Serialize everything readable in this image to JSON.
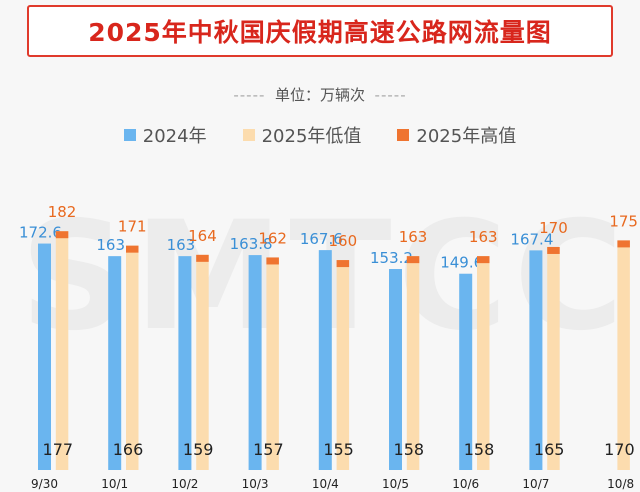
{
  "title": "2025年中秋国庆假期高速公路网流量图",
  "unit": {
    "dash_left": "-----",
    "text": "单位：万辆次",
    "dash_right": "-----"
  },
  "watermark": "SMTCC",
  "colors": {
    "title": "#d8261c",
    "series_2024": "#6ab5ef",
    "series_2025_low": "#fcdcae",
    "series_2025_high": "#ef7430",
    "label_2024": "#3a8fd6",
    "label_high": "#e8691f",
    "label_low": "#222222"
  },
  "chart_data": {
    "type": "bar",
    "title": "2025年中秋国庆假期高速公路网流量图",
    "unit": "万辆次",
    "legend_position": "top",
    "grid": false,
    "categories_2025": [
      "9/30",
      "10/1",
      "10/2",
      "10/3",
      "10/4",
      "10/5",
      "10/6",
      "10/7",
      "10/8"
    ],
    "categories_2024": [
      "9/30",
      "10/1",
      "10/2",
      "10/3",
      "10/4",
      "10/5",
      "10/6",
      "10/7"
    ],
    "series": [
      {
        "name": "2024年",
        "values": [
          172.6,
          163,
          163,
          163.8,
          167.6,
          153.2,
          149.6,
          167.4,
          null
        ]
      },
      {
        "name": "2025年低值",
        "values": [
          177,
          166,
          159,
          157,
          155,
          158,
          158,
          165,
          170
        ]
      },
      {
        "name": "2025年高值",
        "values": [
          182,
          171,
          164,
          162,
          160,
          163,
          163,
          170,
          175
        ]
      }
    ],
    "value_labels_2024": [
      "172.6",
      "163",
      "163",
      "163.8",
      "167.6",
      "153.2",
      "149.6",
      "167.4"
    ],
    "value_labels_low": [
      "177",
      "166",
      "159",
      "157",
      "155",
      "158",
      "158",
      "165",
      "170"
    ],
    "value_labels_high": [
      "182",
      "171",
      "164",
      "162",
      "160",
      "163",
      "163",
      "170",
      "175"
    ]
  }
}
